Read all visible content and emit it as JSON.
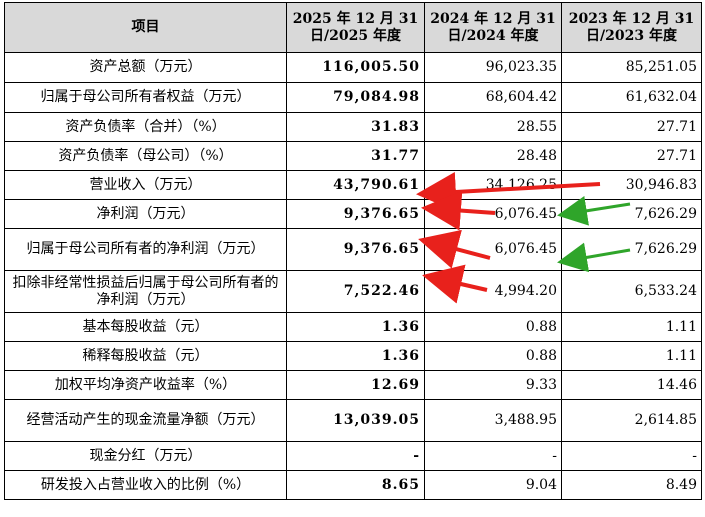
{
  "header": {
    "item": "项目",
    "col_2025": "2025 年 12 月 31 日/2025 年度",
    "col_2024": "2024 年 12 月 31 日/2024 年度",
    "col_2023": "2023 年 12 月 31 日/2023 年度"
  },
  "rows": [
    {
      "label": "资产总额（万元）",
      "v2025": "116,005.50",
      "v2024": "96,023.35",
      "v2023": "85,251.05"
    },
    {
      "label": "归属于母公司所有者权益（万元）",
      "v2025": "79,084.98",
      "v2024": "68,604.42",
      "v2023": "61,632.04"
    },
    {
      "label": "资产负债率（合并）（%）",
      "v2025": "31.83",
      "v2024": "28.55",
      "v2023": "27.71"
    },
    {
      "label": "资产负债率（母公司）（%）",
      "v2025": "31.77",
      "v2024": "28.48",
      "v2023": "27.71"
    },
    {
      "label": "营业收入（万元）",
      "v2025": "43,790.61",
      "v2024": "34,126.25",
      "v2023": "30,946.83"
    },
    {
      "label": "净利润（万元）",
      "v2025": "9,376.65",
      "v2024": "6,076.45",
      "v2023": "7,626.29"
    },
    {
      "label": "归属于母公司所有者的净利润（万元）",
      "v2025": "9,376.65",
      "v2024": "6,076.45",
      "v2023": "7,626.29"
    },
    {
      "label": "扣除非经常性损益后归属于母公司所有者的净利润（万元）",
      "v2025": "7,522.46",
      "v2024": "4,994.20",
      "v2023": "6,533.24"
    },
    {
      "label": "基本每股收益（元）",
      "v2025": "1.36",
      "v2024": "0.88",
      "v2023": "1.11"
    },
    {
      "label": "稀释每股收益（元）",
      "v2025": "1.36",
      "v2024": "0.88",
      "v2023": "1.11"
    },
    {
      "label": "加权平均净资产收益率（%）",
      "v2025": "12.69",
      "v2024": "9.33",
      "v2023": "14.46"
    },
    {
      "label": "经营活动产生的现金流量净额（万元）",
      "v2025": "13,039.05",
      "v2024": "3,488.95",
      "v2023": "2,614.85"
    },
    {
      "label": "现金分红（万元）",
      "v2025": "-",
      "v2024": "-",
      "v2023": "-"
    },
    {
      "label": "研发投入占营业收入的比例（%）",
      "v2025": "8.65",
      "v2024": "9.04",
      "v2023": "8.49"
    }
  ],
  "colors": {
    "red_arrow": "#e8211c",
    "green_arrow": "#2fa52a",
    "header_bg": "#d9d9d9"
  }
}
